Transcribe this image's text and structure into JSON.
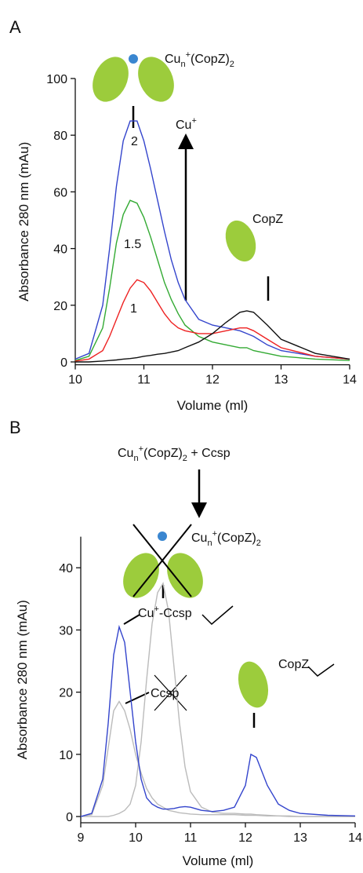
{
  "chart_data": [
    {
      "type": "line",
      "panel": "A",
      "xlabel": "Volume (ml)",
      "ylabel": "Absorbance 280 nm (mAu)",
      "xlim": [
        10,
        14
      ],
      "ylim": [
        -1,
        100
      ],
      "xticks": [
        10,
        11,
        12,
        13,
        14
      ],
      "yticks": [
        0,
        20,
        40,
        60,
        80,
        100
      ],
      "x": [
        10,
        10.2,
        10.4,
        10.5,
        10.6,
        10.7,
        10.8,
        10.9,
        11,
        11.1,
        11.2,
        11.3,
        11.4,
        11.5,
        11.6,
        11.8,
        12,
        12.2,
        12.4,
        12.5,
        12.6,
        12.8,
        13,
        13.5,
        14
      ],
      "series": [
        {
          "color": "#3344cc",
          "values": [
            1,
            3,
            20,
            40,
            62,
            78,
            85,
            85,
            78,
            68,
            57,
            46,
            36,
            28,
            22,
            15,
            13,
            12,
            11,
            10,
            9,
            6,
            4,
            2,
            1
          ]
        },
        {
          "color": "#33aa33",
          "values": [
            0.5,
            2,
            12,
            26,
            42,
            52,
            57,
            56,
            51,
            44,
            36,
            28,
            22,
            17,
            13,
            9,
            7,
            6,
            5,
            5,
            4,
            3,
            2,
            1,
            0.5
          ]
        },
        {
          "color": "#ee2222",
          "values": [
            0.3,
            1,
            4,
            9,
            15,
            21,
            26,
            29,
            28,
            25,
            21,
            17,
            14,
            12,
            11,
            10,
            10,
            11,
            12,
            12,
            11,
            8,
            5,
            2,
            1
          ]
        },
        {
          "color": "#111111",
          "values": [
            0,
            0,
            0.3,
            0.5,
            0.7,
            1,
            1.2,
            1.5,
            2,
            2.3,
            2.7,
            3,
            3.5,
            4,
            5,
            7,
            10,
            14,
            17.5,
            18,
            17.5,
            13,
            8,
            3,
            1
          ]
        }
      ],
      "annotations": [
        {
          "parts": [
            "Cu",
            "n",
            "+",
            "(CopZ)",
            "2"
          ]
        },
        {
          "parts": [
            "Cu",
            "+"
          ]
        },
        {
          "text": "CopZ"
        },
        {
          "text": "2"
        },
        {
          "text": "1.5"
        },
        {
          "text": "1"
        }
      ]
    },
    {
      "type": "line",
      "panel": "B",
      "xlabel": "Volume (ml)",
      "ylabel": "Absorbance 280 nm (mAu)",
      "xlim": [
        9,
        14
      ],
      "ylim": [
        -1,
        45
      ],
      "xticks": [
        9,
        10,
        11,
        12,
        13,
        14
      ],
      "yticks": [
        0,
        10,
        20,
        30,
        40
      ],
      "x": [
        9,
        9.2,
        9.4,
        9.5,
        9.6,
        9.7,
        9.8,
        9.9,
        10,
        10.1,
        10.2,
        10.3,
        10.4,
        10.5,
        10.6,
        10.7,
        10.8,
        10.9,
        11,
        11.2,
        11.4,
        11.6,
        11.8,
        12,
        12.1,
        12.2,
        12.4,
        12.6,
        12.8,
        13,
        13.5,
        14
      ],
      "series": [
        {
          "color": "#bbbbbb",
          "values": [
            0,
            0.3,
            5,
            11,
            17,
            18.5,
            17,
            14,
            10,
            7,
            4.5,
            3,
            2,
            1.5,
            1,
            0.8,
            0.6,
            0.5,
            0.4,
            0.3,
            0.3,
            0.3,
            0.3,
            0.2,
            0.2,
            0.2,
            0.1,
            0.1,
            0.1,
            0,
            0,
            0
          ]
        },
        {
          "color": "#bbbbbb",
          "values": [
            0,
            0,
            0,
            0,
            0.2,
            0.5,
            1,
            2,
            5,
            12,
            22,
            31,
            36,
            37.5,
            33,
            24,
            15,
            8,
            4,
            1.5,
            0.7,
            0.5,
            0.5,
            0.4,
            0.4,
            0.3,
            0.2,
            0.1,
            0,
            0,
            0,
            0
          ]
        },
        {
          "color": "#3344cc",
          "values": [
            0,
            0.5,
            6,
            15,
            26,
            30.5,
            28,
            20,
            12,
            6,
            3,
            2,
            1.5,
            1.2,
            1.2,
            1.3,
            1.5,
            1.6,
            1.5,
            1,
            0.8,
            1,
            1.5,
            5,
            10,
            9.5,
            5,
            2,
            1,
            0.5,
            0.2,
            0.1
          ]
        }
      ],
      "annotations": [
        {
          "parts": [
            "Cu",
            "n",
            "+",
            "(CopZ)",
            "2",
            " + Ccsp"
          ]
        },
        {
          "parts": [
            "Cu",
            "n",
            "+",
            "(CopZ)",
            "2"
          ]
        },
        {
          "parts": [
            "Cu",
            "+",
            "-Ccsp"
          ]
        },
        {
          "text": "Ccsp"
        },
        {
          "text": "CopZ"
        }
      ]
    }
  ]
}
